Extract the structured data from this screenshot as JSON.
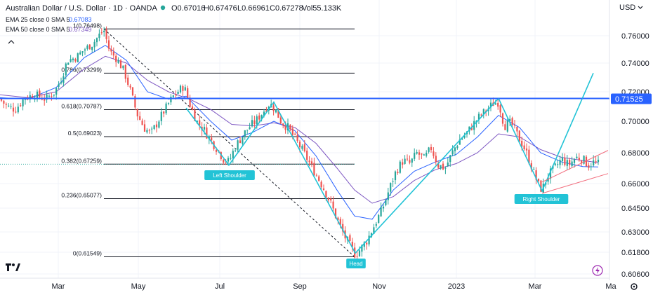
{
  "header": {
    "symbol": "Australian Dollar / U.S. Dollar · 1D · OANDA",
    "open": "O0.67016",
    "high": "H0.67476",
    "low": "L0.66961",
    "close": "C0.67278",
    "volume": "Vol55.133K",
    "ema25_label": "EMA 25 close 0 SMA 5",
    "ema25_value": "0.67083",
    "ema25_sub": "1(0.76498)",
    "ema50_label": "EMA 50 close 0 SMA 5",
    "ema50_value": "0.67349",
    "currency": "USD"
  },
  "colors": {
    "up": "#26a69a",
    "down": "#ef5350",
    "ema_fast": "#2962ff",
    "ema_slow": "#7e57c2",
    "pattern": "#22c3d6",
    "resistance": "#2962ff",
    "channel": "#f26d7d"
  },
  "chart_data": {
    "type": "candlestick",
    "x_labels": [
      "Mar",
      "May",
      "Jul",
      "Sep",
      "Nov",
      "2023",
      "Mar",
      "Ma"
    ],
    "y_ticks": [
      "0.76000",
      "0.74000",
      "0.72000",
      "0.70000",
      "0.68000",
      "0.66000",
      "0.64500",
      "0.63000",
      "0.61800",
      "0.60600"
    ],
    "y_range": [
      0.6,
      0.768
    ],
    "current_price": "0.71525",
    "fib_levels": [
      {
        "label": "1(0.76498)",
        "value": 0.76498
      },
      {
        "label": "0.786(0.73299)",
        "value": 0.73299
      },
      {
        "label": "0.618(0.70787)",
        "value": 0.70787
      },
      {
        "label": "0.5(0.69023)",
        "value": 0.69023
      },
      {
        "label": "0.382(0.67259)",
        "value": 0.67259
      },
      {
        "label": "0.236(0.65077)",
        "value": 0.65077
      },
      {
        "label": "0(0.61549)",
        "value": 0.61549
      }
    ],
    "annotations": {
      "left_shoulder": "Left Shoulder",
      "head": "Head",
      "right_shoulder": "Right Shoulder"
    },
    "price_path": [
      [
        0,
        0.715
      ],
      [
        10,
        0.71
      ],
      [
        22,
        0.708
      ],
      [
        35,
        0.716
      ],
      [
        50,
        0.718
      ],
      [
        65,
        0.715
      ],
      [
        78,
        0.72
      ],
      [
        88,
        0.73
      ],
      [
        96,
        0.742
      ],
      [
        108,
        0.744
      ],
      [
        120,
        0.75
      ],
      [
        132,
        0.754
      ],
      [
        142,
        0.761
      ],
      [
        148,
        0.764
      ],
      [
        156,
        0.749
      ],
      [
        166,
        0.743
      ],
      [
        176,
        0.735
      ],
      [
        185,
        0.722
      ],
      [
        195,
        0.705
      ],
      [
        205,
        0.696
      ],
      [
        215,
        0.692
      ],
      [
        225,
        0.7
      ],
      [
        235,
        0.708
      ],
      [
        245,
        0.716
      ],
      [
        255,
        0.721
      ],
      [
        262,
        0.724
      ],
      [
        270,
        0.712
      ],
      [
        280,
        0.7
      ],
      [
        290,
        0.695
      ],
      [
        300,
        0.688
      ],
      [
        310,
        0.682
      ],
      [
        318,
        0.676
      ],
      [
        326,
        0.674
      ],
      [
        334,
        0.683
      ],
      [
        344,
        0.69
      ],
      [
        354,
        0.696
      ],
      [
        364,
        0.7
      ],
      [
        374,
        0.706
      ],
      [
        384,
        0.712
      ],
      [
        392,
        0.708
      ],
      [
        400,
        0.7
      ],
      [
        410,
        0.696
      ],
      [
        420,
        0.689
      ],
      [
        430,
        0.682
      ],
      [
        440,
        0.674
      ],
      [
        450,
        0.666
      ],
      [
        460,
        0.658
      ],
      [
        470,
        0.649
      ],
      [
        480,
        0.638
      ],
      [
        490,
        0.628
      ],
      [
        498,
        0.622
      ],
      [
        506,
        0.617
      ],
      [
        514,
        0.62
      ],
      [
        524,
        0.626
      ],
      [
        534,
        0.635
      ],
      [
        544,
        0.644
      ],
      [
        554,
        0.656
      ],
      [
        564,
        0.668
      ],
      [
        574,
        0.675
      ],
      [
        584,
        0.673
      ],
      [
        594,
        0.68
      ],
      [
        604,
        0.676
      ],
      [
        614,
        0.683
      ],
      [
        624,
        0.672
      ],
      [
        634,
        0.67
      ],
      [
        644,
        0.68
      ],
      [
        654,
        0.688
      ],
      [
        664,
        0.692
      ],
      [
        674,
        0.698
      ],
      [
        684,
        0.704
      ],
      [
        694,
        0.708
      ],
      [
        702,
        0.712
      ],
      [
        710,
        0.713
      ],
      [
        718,
        0.697
      ],
      [
        728,
        0.699
      ],
      [
        738,
        0.69
      ],
      [
        748,
        0.682
      ],
      [
        758,
        0.67
      ],
      [
        766,
        0.66
      ],
      [
        772,
        0.656
      ],
      [
        780,
        0.665
      ],
      [
        790,
        0.67
      ],
      [
        800,
        0.676
      ],
      [
        810,
        0.672
      ],
      [
        820,
        0.677
      ],
      [
        830,
        0.676
      ],
      [
        838,
        0.672
      ],
      [
        846,
        0.674
      ],
      [
        852,
        0.6728
      ]
    ],
    "ema_fast": [
      [
        0,
        0.716
      ],
      [
        40,
        0.715
      ],
      [
        80,
        0.723
      ],
      [
        120,
        0.744
      ],
      [
        150,
        0.753
      ],
      [
        180,
        0.742
      ],
      [
        210,
        0.72
      ],
      [
        240,
        0.715
      ],
      [
        265,
        0.717
      ],
      [
        300,
        0.7
      ],
      [
        330,
        0.688
      ],
      [
        360,
        0.693
      ],
      [
        390,
        0.7
      ],
      [
        420,
        0.694
      ],
      [
        450,
        0.678
      ],
      [
        480,
        0.656
      ],
      [
        505,
        0.64
      ],
      [
        530,
        0.638
      ],
      [
        560,
        0.656
      ],
      [
        590,
        0.668
      ],
      [
        620,
        0.674
      ],
      [
        650,
        0.679
      ],
      [
        680,
        0.69
      ],
      [
        710,
        0.704
      ],
      [
        740,
        0.696
      ],
      [
        770,
        0.68
      ],
      [
        800,
        0.674
      ],
      [
        830,
        0.671
      ],
      [
        852,
        0.6708
      ]
    ],
    "ema_slow": [
      [
        0,
        0.718
      ],
      [
        40,
        0.716
      ],
      [
        80,
        0.72
      ],
      [
        120,
        0.736
      ],
      [
        150,
        0.745
      ],
      [
        180,
        0.74
      ],
      [
        210,
        0.728
      ],
      [
        240,
        0.72
      ],
      [
        270,
        0.715
      ],
      [
        300,
        0.708
      ],
      [
        330,
        0.698
      ],
      [
        360,
        0.697
      ],
      [
        390,
        0.699
      ],
      [
        420,
        0.696
      ],
      [
        450,
        0.686
      ],
      [
        480,
        0.67
      ],
      [
        505,
        0.656
      ],
      [
        530,
        0.648
      ],
      [
        560,
        0.652
      ],
      [
        590,
        0.662
      ],
      [
        620,
        0.669
      ],
      [
        650,
        0.673
      ],
      [
        680,
        0.68
      ],
      [
        710,
        0.692
      ],
      [
        740,
        0.69
      ],
      [
        770,
        0.682
      ],
      [
        800,
        0.677
      ],
      [
        830,
        0.675
      ],
      [
        852,
        0.6735
      ]
    ]
  }
}
